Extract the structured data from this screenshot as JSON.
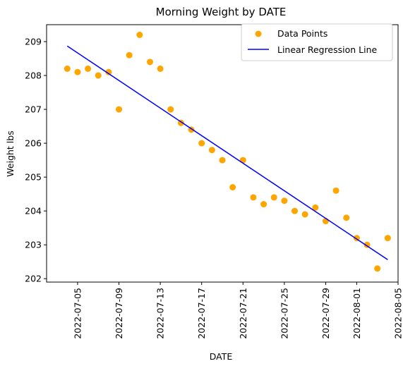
{
  "chart_data": {
    "type": "scatter",
    "title": "Morning Weight by DATE",
    "xlabel": "DATE",
    "ylabel": "Weight lbs",
    "x_tick_labels": [
      "2022-07-05",
      "2022-07-09",
      "2022-07-13",
      "2022-07-17",
      "2022-07-21",
      "2022-07-25",
      "2022-07-29",
      "2022-08-01",
      "2022-08-05"
    ],
    "y_tick_labels": [
      "202",
      "203",
      "204",
      "205",
      "206",
      "207",
      "208",
      "209"
    ],
    "xlim": [
      "2022-07-02",
      "2022-08-05"
    ],
    "ylim": [
      201.9,
      209.5
    ],
    "legend": {
      "position": "top-right",
      "entries": [
        "Data Points",
        "Linear Regression Line"
      ]
    },
    "grid": false,
    "series": [
      {
        "name": "Data Points",
        "kind": "scatter",
        "color": "#ffa500",
        "x": [
          "2022-07-04",
          "2022-07-05",
          "2022-07-06",
          "2022-07-07",
          "2022-07-08",
          "2022-07-09",
          "2022-07-10",
          "2022-07-11",
          "2022-07-12",
          "2022-07-13",
          "2022-07-14",
          "2022-07-15",
          "2022-07-16",
          "2022-07-17",
          "2022-07-18",
          "2022-07-19",
          "2022-07-20",
          "2022-07-21",
          "2022-07-22",
          "2022-07-23",
          "2022-07-24",
          "2022-07-25",
          "2022-07-26",
          "2022-07-27",
          "2022-07-28",
          "2022-07-29",
          "2022-07-30",
          "2022-07-31",
          "2022-08-01",
          "2022-08-02",
          "2022-08-03",
          "2022-08-04"
        ],
        "y": [
          208.2,
          208.1,
          208.2,
          208.0,
          208.1,
          207.0,
          208.6,
          209.2,
          208.4,
          208.2,
          207.0,
          206.6,
          206.4,
          206.0,
          205.8,
          205.5,
          204.7,
          205.5,
          204.4,
          204.2,
          204.4,
          204.3,
          204.0,
          203.9,
          204.1,
          203.7,
          204.6,
          203.8,
          203.2,
          203.0,
          202.3,
          203.2
        ]
      },
      {
        "name": "Linear Regression Line",
        "kind": "line",
        "color": "#0000ff",
        "x": [
          "2022-07-04",
          "2022-08-04"
        ],
        "y": [
          208.87,
          202.56
        ]
      }
    ]
  }
}
